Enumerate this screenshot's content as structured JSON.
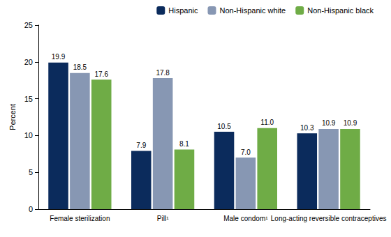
{
  "chart_data": {
    "type": "bar",
    "categories": [
      "Female sterilization",
      "Pill¹",
      "Male condom¹",
      "Long-acting reversible contraceptives"
    ],
    "series": [
      {
        "name": "Hispanic",
        "color": "#0b2b5c",
        "values": [
          19.9,
          7.9,
          10.5,
          10.3
        ],
        "value_labels": [
          "19.9",
          "7.9",
          "10.5",
          "10.3"
        ]
      },
      {
        "name": "Non-Hispanic white",
        "color": "#8797b3",
        "values": [
          18.5,
          17.8,
          7.0,
          10.9
        ],
        "value_labels": [
          "18.5",
          "17.8",
          "7.0",
          "10.9"
        ]
      },
      {
        "name": "Non-Hispanic black",
        "color": "#6fac46",
        "values": [
          17.6,
          8.1,
          11.0,
          10.9
        ],
        "value_labels": [
          "17.6",
          "8.1",
          "11.0",
          "10.9"
        ]
      }
    ],
    "ylabel": "Percent",
    "ylim": [
      0,
      25
    ],
    "yticks": [
      0,
      5,
      10,
      15,
      20,
      25
    ],
    "legend": "top-right",
    "data_labels": true,
    "grid": false
  }
}
